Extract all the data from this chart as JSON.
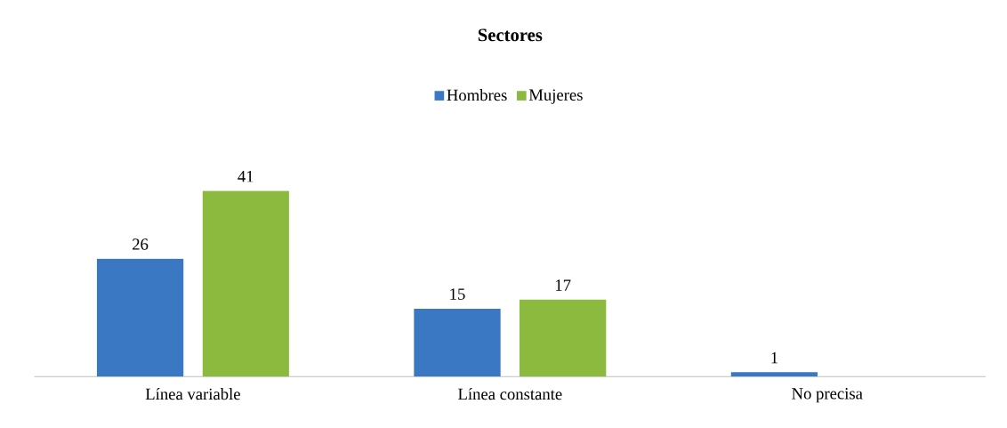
{
  "chart_data": {
    "type": "bar",
    "title": "Sectores",
    "categories": [
      "Línea variable",
      "Línea constante",
      "No precisa"
    ],
    "series": [
      {
        "name": "Hombres",
        "color": "#3a78c3",
        "values": [
          26,
          15,
          1
        ]
      },
      {
        "name": "Mujeres",
        "color": "#8cba3f",
        "values": [
          41,
          17,
          null
        ]
      }
    ],
    "data_labels": true,
    "legend": "top"
  }
}
